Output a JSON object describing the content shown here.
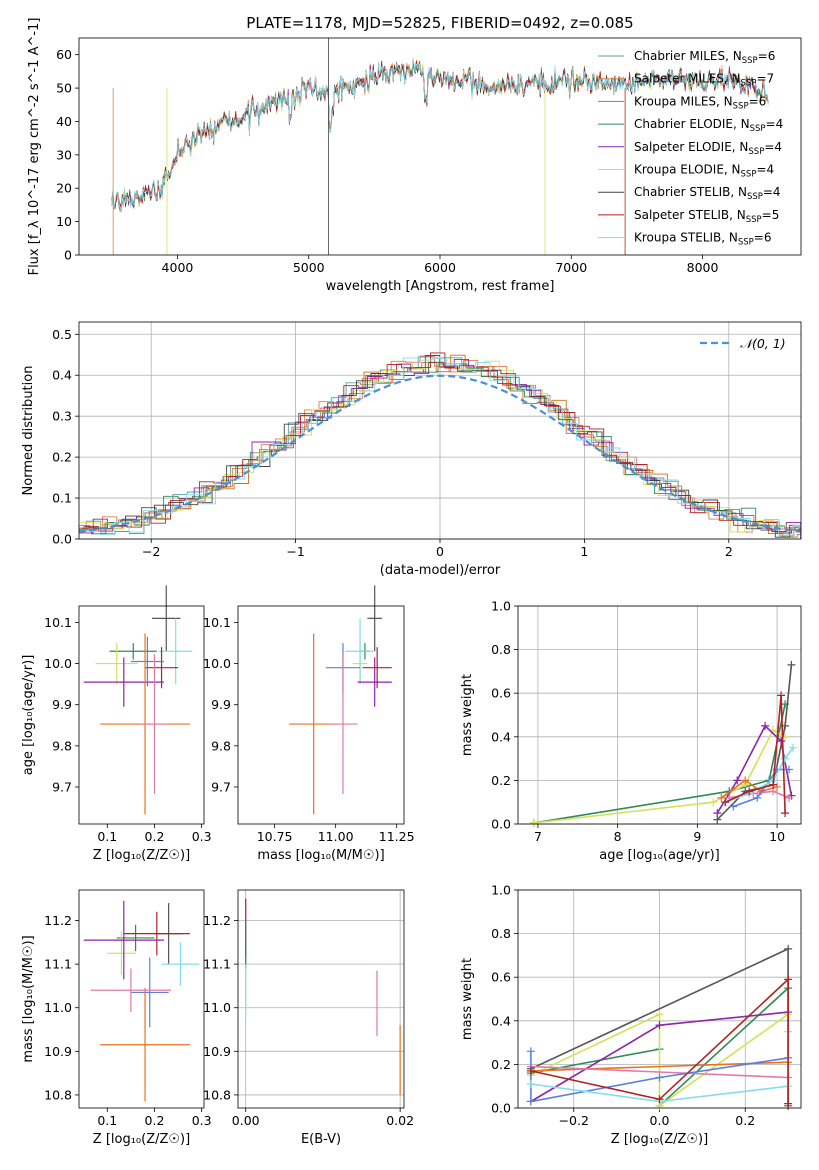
{
  "figure": {
    "title": "PLATE=1178, MJD=52825, FIBERID=0492, z=0.085",
    "colors": {
      "chabrier_miles": "#5f9ea0",
      "salpeter_miles": "#e07b54",
      "kroupa_miles": "#d2691e",
      "chabrier_elodie": "#2e8b57",
      "salpeter_elodie": "#8e24aa",
      "kroupa_elodie": "#d4e157",
      "chabrier_stelib": "#444444",
      "salpeter_stelib": "#b22222",
      "kroupa_stelib": "#80deea",
      "normal_curve": "#4a90d9",
      "orange": "#e8731f",
      "pink": "#e07aa8",
      "blue": "#5b7fe0"
    }
  },
  "chart_data": [
    {
      "id": "spectrum",
      "type": "line",
      "xlabel": "wavelength [Angstrom, rest frame]",
      "ylabel": "Flux [f_λ 10^-17 erg cm^-2 s^-1 A^-1]",
      "xlim": [
        3250,
        8750
      ],
      "ylim": [
        0,
        65
      ],
      "xticks": [
        4000,
        5000,
        6000,
        7000,
        8000
      ],
      "yticks": [
        0,
        10,
        20,
        30,
        40,
        50,
        60
      ],
      "grid": false,
      "legend_position": "top-right",
      "legend": [
        {
          "text": "Chabrier MILES, N",
          "sub": "SSP",
          "post": "=6"
        },
        {
          "text": "Salpeter MILES, N",
          "sub": "SSP",
          "post": "=7"
        },
        {
          "text": "Kroupa MILES, N",
          "sub": "SSP",
          "post": "=6"
        },
        {
          "text": "Chabrier ELODIE, N",
          "sub": "SSP",
          "post": "=4"
        },
        {
          "text": "Salpeter ELODIE, N",
          "sub": "SSP",
          "post": "=4"
        },
        {
          "text": "Kroupa ELODIE, N",
          "sub": "SSP",
          "post": "=4"
        },
        {
          "text": "Chabrier STELIB, N",
          "sub": "SSP",
          "post": "=4"
        },
        {
          "text": "Salpeter STELIB, N",
          "sub": "SSP",
          "post": "=5"
        },
        {
          "text": "Kroupa STELIB, N",
          "sub": "SSP",
          "post": "=6"
        }
      ],
      "continuum": {
        "x": [
          3500,
          3700,
          3900,
          4000,
          4150,
          4300,
          4500,
          4700,
          4850,
          5000,
          5150,
          5300,
          5500,
          5700,
          5900,
          6100,
          6300,
          6500,
          6700,
          6900,
          7100,
          7300,
          7500,
          7800,
          8100,
          8350,
          8500
        ],
        "y": [
          16,
          18,
          20,
          30,
          36,
          38,
          41,
          45,
          48,
          50,
          48,
          50,
          53,
          55,
          55,
          52,
          51,
          50,
          51,
          52,
          52,
          51,
          52,
          53,
          52,
          51,
          48
        ]
      }
    },
    {
      "id": "residuals",
      "type": "line",
      "xlabel": "(data-model)/error",
      "ylabel": "Normed distribution",
      "xlim": [
        -2.5,
        2.5
      ],
      "ylim": [
        0,
        0.53
      ],
      "xticks": [
        -2,
        -1,
        0,
        1,
        2
      ],
      "yticks": [
        0.0,
        0.1,
        0.2,
        0.3,
        0.4,
        0.5
      ],
      "grid": true,
      "legend_position": "top-right",
      "legend": [
        "𝒩(0, 1)"
      ]
    },
    {
      "id": "age_vs_z",
      "type": "scatter",
      "xlabel": "Z [log₁₀(Z/Z☉)]",
      "ylabel": "age  [log₁₀(age/yr)]",
      "xlim": [
        0.04,
        0.305
      ],
      "ylim": [
        9.61,
        10.14
      ],
      "xticks": [
        0.1,
        0.2,
        0.3
      ],
      "yticks": [
        9.7,
        9.8,
        9.9,
        10.0,
        10.1
      ],
      "grid": false,
      "points": [
        {
          "x": 0.225,
          "y": 10.11,
          "xerr": 0.03,
          "yerr": 0.08,
          "color": "#555555"
        },
        {
          "x": 0.155,
          "y": 10.03,
          "xerr": 0.05,
          "yerr": 0.02,
          "color": "#2e8b57"
        },
        {
          "x": 0.12,
          "y": 10.0,
          "xerr": 0.045,
          "yerr": 0.05,
          "color": "#d4e157"
        },
        {
          "x": 0.245,
          "y": 10.03,
          "xerr": 0.035,
          "yerr": 0.08,
          "color": "#80deea"
        },
        {
          "x": 0.215,
          "y": 9.99,
          "xerr": 0.035,
          "yerr": 0.05,
          "color": "#b22222"
        },
        {
          "x": 0.135,
          "y": 9.955,
          "xerr": 0.085,
          "yerr": 0.06,
          "color": "#8e24aa"
        },
        {
          "x": 0.185,
          "y": 10.005,
          "xerr": 0.035,
          "yerr": 0.06,
          "color": "#5b7fe0"
        },
        {
          "x": 0.18,
          "y": 9.853,
          "xerr": 0.095,
          "yerr": 0.22,
          "color": "#e8731f"
        },
        {
          "x": 0.2,
          "y": 9.853,
          "xerr": 0.03,
          "yerr": 0.17,
          "color": "#e07aa8"
        }
      ]
    },
    {
      "id": "age_vs_mass",
      "type": "scatter",
      "xlabel": "mass [log₁₀(M/M☉)]",
      "ylabel": "",
      "xlim": [
        10.6,
        11.28
      ],
      "ylim": [
        9.61,
        10.14
      ],
      "xticks": [
        10.75,
        11.0,
        11.25
      ],
      "yticks": [
        9.7,
        9.8,
        9.9,
        10.0,
        10.1
      ],
      "grid": false,
      "points": [
        {
          "x": 11.16,
          "y": 10.11,
          "xerr": 0.03,
          "yerr": 0.08,
          "color": "#555555"
        },
        {
          "x": 11.12,
          "y": 10.03,
          "xerr": 0.02,
          "yerr": 0.02,
          "color": "#2e8b57"
        },
        {
          "x": 11.1,
          "y": 10.0,
          "xerr": 0.03,
          "yerr": 0.05,
          "color": "#d4e157"
        },
        {
          "x": 11.1,
          "y": 10.03,
          "xerr": 0.06,
          "yerr": 0.08,
          "color": "#80deea"
        },
        {
          "x": 11.17,
          "y": 9.99,
          "xerr": 0.06,
          "yerr": 0.05,
          "color": "#b22222"
        },
        {
          "x": 11.16,
          "y": 9.955,
          "xerr": 0.07,
          "yerr": 0.06,
          "color": "#8e24aa"
        },
        {
          "x": 11.03,
          "y": 9.99,
          "xerr": 0.07,
          "yerr": 0.06,
          "color": "#5b7fe0"
        },
        {
          "x": 10.91,
          "y": 9.853,
          "xerr": 0.1,
          "yerr": 0.22,
          "color": "#e8731f"
        },
        {
          "x": 11.03,
          "y": 9.853,
          "xerr": 0.06,
          "yerr": 0.17,
          "color": "#e07aa8"
        }
      ]
    },
    {
      "id": "weight_vs_age",
      "type": "line",
      "xlabel": "age  [log₁₀(age/yr)]",
      "ylabel": "mass weight",
      "xlim": [
        6.75,
        10.3
      ],
      "ylim": [
        0,
        1.0
      ],
      "xticks": [
        7,
        8,
        9,
        10
      ],
      "yticks": [
        0.0,
        0.2,
        0.4,
        0.6,
        0.8,
        1.0
      ],
      "grid": true,
      "series": [
        {
          "color": "#2e8b57",
          "x": [
            6.95,
            9.4,
            9.9,
            10.1
          ],
          "y": [
            0.005,
            0.15,
            0.2,
            0.55
          ]
        },
        {
          "color": "#d4e157",
          "x": [
            6.95,
            9.2,
            9.6,
            9.95,
            10.1
          ],
          "y": [
            0.005,
            0.1,
            0.18,
            0.43,
            0.4
          ]
        },
        {
          "color": "#555555",
          "x": [
            9.25,
            9.6,
            9.95,
            10.1,
            10.18
          ],
          "y": [
            0.02,
            0.15,
            0.18,
            0.45,
            0.73
          ]
        },
        {
          "color": "#8e24aa",
          "x": [
            9.25,
            9.5,
            9.85,
            10.05,
            10.18
          ],
          "y": [
            0.05,
            0.2,
            0.45,
            0.38,
            0.13
          ]
        },
        {
          "color": "#e8731f",
          "x": [
            9.3,
            9.6,
            9.8,
            10.0
          ],
          "y": [
            0.12,
            0.2,
            0.15,
            0.17
          ]
        },
        {
          "color": "#e07aa8",
          "x": [
            9.4,
            9.7,
            9.95,
            10.15
          ],
          "y": [
            0.12,
            0.14,
            0.15,
            0.12
          ]
        },
        {
          "color": "#5b7fe0",
          "x": [
            9.45,
            9.75,
            10.0,
            10.15
          ],
          "y": [
            0.08,
            0.12,
            0.25,
            0.25
          ]
        },
        {
          "color": "#80deea",
          "x": [
            9.35,
            9.65,
            9.95,
            10.1,
            10.2
          ],
          "y": [
            0.1,
            0.14,
            0.2,
            0.3,
            0.35
          ]
        },
        {
          "color": "#b22222",
          "x": [
            9.35,
            9.65,
            9.95,
            10.05,
            10.1
          ],
          "y": [
            0.1,
            0.15,
            0.18,
            0.59,
            0.05
          ]
        }
      ]
    },
    {
      "id": "mass_vs_z",
      "type": "scatter",
      "xlabel": "Z [log₁₀(Z/Z☉)]",
      "ylabel": "mass [log₁₀(M/M☉)]",
      "xlim": [
        0.04,
        0.305
      ],
      "ylim": [
        10.77,
        11.27
      ],
      "xticks": [
        0.1,
        0.2,
        0.3
      ],
      "yticks": [
        10.8,
        10.9,
        11.0,
        11.1,
        11.2
      ],
      "grid": false,
      "points": [
        {
          "x": 0.23,
          "y": 11.17,
          "xerr": 0.03,
          "yerr": 0.07,
          "color": "#555555"
        },
        {
          "x": 0.16,
          "y": 11.16,
          "xerr": 0.04,
          "yerr": 0.03,
          "color": "#2e8b57"
        },
        {
          "x": 0.13,
          "y": 11.125,
          "xerr": 0.03,
          "yerr": 0.05,
          "color": "#d4e157"
        },
        {
          "x": 0.255,
          "y": 11.1,
          "xerr": 0.04,
          "yerr": 0.05,
          "color": "#80deea"
        },
        {
          "x": 0.205,
          "y": 11.17,
          "xerr": 0.07,
          "yerr": 0.05,
          "color": "#b22222"
        },
        {
          "x": 0.135,
          "y": 11.155,
          "xerr": 0.085,
          "yerr": 0.09,
          "color": "#8e24aa"
        },
        {
          "x": 0.19,
          "y": 11.035,
          "xerr": 0.04,
          "yerr": 0.08,
          "color": "#5b7fe0"
        },
        {
          "x": 0.18,
          "y": 10.915,
          "xerr": 0.095,
          "yerr": 0.13,
          "color": "#e8731f"
        },
        {
          "x": 0.15,
          "y": 11.04,
          "xerr": 0.085,
          "yerr": 0.05,
          "color": "#e07aa8"
        }
      ]
    },
    {
      "id": "mass_vs_ebv",
      "type": "scatter",
      "xlabel": "E(B-V)",
      "ylabel": "",
      "xlim": [
        -0.001,
        0.0205
      ],
      "ylim": [
        10.77,
        11.27
      ],
      "xticks": [
        0.0,
        0.02
      ],
      "xtick_labels": [
        "0.00",
        "0.02"
      ],
      "yticks": [
        10.8,
        10.9,
        11.0,
        11.1,
        11.2
      ],
      "grid": true,
      "points": [
        {
          "x": 0.0,
          "y": 11.17,
          "xerr": 0,
          "yerr": 0.08,
          "color": "#b22222"
        },
        {
          "x": 0.0,
          "y": 11.05,
          "xerr": 0,
          "yerr": 0.07,
          "color": "#80deea"
        },
        {
          "x": 0.0,
          "y": 11.15,
          "xerr": 0,
          "yerr": 0.05,
          "color": "#2e8b57"
        },
        {
          "x": 0.017,
          "y": 11.01,
          "xerr": 0,
          "yerr": 0.075,
          "color": "#e07aa8"
        },
        {
          "x": 0.02,
          "y": 10.88,
          "xerr": 0,
          "yerr": 0.08,
          "color": "#e8731f"
        }
      ]
    },
    {
      "id": "weight_vs_z",
      "type": "line",
      "xlabel": "Z [log₁₀(Z/Z☉)]",
      "ylabel": "mass weight",
      "xlim": [
        -0.33,
        0.33
      ],
      "ylim": [
        0,
        1.0
      ],
      "xticks": [
        -0.2,
        0.0,
        0.2
      ],
      "xtick_labels": [
        "−0.2",
        "0.0",
        "0.2"
      ],
      "yticks": [
        0.0,
        0.2,
        0.4,
        0.6,
        0.8,
        1.0
      ],
      "grid": true,
      "series": [
        {
          "color": "#555555",
          "x": [
            -0.3,
            0.3,
            0.3
          ],
          "y": [
            0.18,
            0.73,
            0.01
          ]
        },
        {
          "color": "#2e8b57",
          "x": [
            -0.3,
            0.0
          ],
          "y": [
            0.16,
            0.27
          ]
        },
        {
          "color": "#2e8b57",
          "x": [
            0.0,
            0.3
          ],
          "y": [
            0.01,
            0.55
          ]
        },
        {
          "color": "#d4e157",
          "x": [
            -0.3,
            0.0,
            0.0,
            0.3
          ],
          "y": [
            0.15,
            0.43,
            0.01,
            0.43
          ]
        },
        {
          "color": "#8e24aa",
          "x": [
            -0.3,
            0.0,
            0.3
          ],
          "y": [
            0.03,
            0.38,
            0.44
          ]
        },
        {
          "color": "#e8731f",
          "x": [
            -0.3,
            0.3
          ],
          "y": [
            0.17,
            0.21
          ]
        },
        {
          "color": "#e07aa8",
          "x": [
            -0.3,
            0.3
          ],
          "y": [
            0.19,
            0.14
          ]
        },
        {
          "color": "#5b7fe0",
          "x": [
            -0.3,
            -0.3,
            0.0,
            0.3
          ],
          "y": [
            0.26,
            0.03,
            0.14,
            0.23
          ]
        },
        {
          "color": "#80deea",
          "x": [
            -0.3,
            0.0,
            0.3,
            0.3
          ],
          "y": [
            0.11,
            0.03,
            0.1,
            0.35
          ]
        },
        {
          "color": "#b22222",
          "x": [
            -0.3,
            0.0,
            0.3,
            0.3
          ],
          "y": [
            0.17,
            0.04,
            0.59,
            0.02
          ]
        }
      ]
    }
  ]
}
